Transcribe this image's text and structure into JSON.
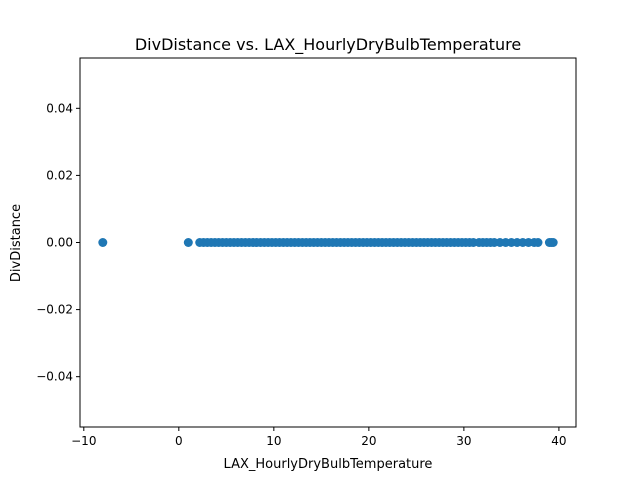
{
  "chart_data": {
    "type": "scatter",
    "title": "DivDistance vs. LAX_HourlyDryBulbTemperature",
    "xlabel": "LAX_HourlyDryBulbTemperature",
    "ylabel": "DivDistance",
    "xlim": [
      -10.4,
      41.8
    ],
    "ylim": [
      -0.055,
      0.055
    ],
    "xticks": [
      {
        "value": -10,
        "label": "−10"
      },
      {
        "value": 0,
        "label": "0"
      },
      {
        "value": 10,
        "label": "10"
      },
      {
        "value": 20,
        "label": "20"
      },
      {
        "value": 30,
        "label": "30"
      },
      {
        "value": 40,
        "label": "40"
      }
    ],
    "yticks": [
      {
        "value": -0.04,
        "label": "−0.04"
      },
      {
        "value": -0.02,
        "label": "−0.02"
      },
      {
        "value": 0.0,
        "label": "0.00"
      },
      {
        "value": 0.02,
        "label": "0.02"
      },
      {
        "value": 0.04,
        "label": "0.04"
      }
    ],
    "grid": false,
    "legend": "none",
    "color": "#1f77b4",
    "series": [
      {
        "x": [
          -8.0,
          1.0,
          2.2,
          2.6,
          3.0,
          3.4,
          3.8,
          4.2,
          4.6,
          5.0,
          5.4,
          5.8,
          6.2,
          6.6,
          7.0,
          7.4,
          7.8,
          8.2,
          8.6,
          9.0,
          9.4,
          9.8,
          10.2,
          10.6,
          11.0,
          11.4,
          11.8,
          12.2,
          12.6,
          13.0,
          13.4,
          13.8,
          14.2,
          14.6,
          15.0,
          15.4,
          15.8,
          16.2,
          16.6,
          17.0,
          17.4,
          17.8,
          18.2,
          18.6,
          19.0,
          19.4,
          19.8,
          20.2,
          20.6,
          21.0,
          21.4,
          21.8,
          22.2,
          22.6,
          23.0,
          23.4,
          23.8,
          24.2,
          24.6,
          25.0,
          25.4,
          25.8,
          26.2,
          26.6,
          27.0,
          27.4,
          27.8,
          28.2,
          28.6,
          29.0,
          29.4,
          29.8,
          30.2,
          30.6,
          31.0,
          31.6,
          32.0,
          32.4,
          32.8,
          33.2,
          33.8,
          34.4,
          35.0,
          35.6,
          36.2,
          36.8,
          37.4,
          37.8,
          39.0,
          39.2,
          39.4
        ],
        "y": [
          0,
          0,
          0,
          0,
          0,
          0,
          0,
          0,
          0,
          0,
          0,
          0,
          0,
          0,
          0,
          0,
          0,
          0,
          0,
          0,
          0,
          0,
          0,
          0,
          0,
          0,
          0,
          0,
          0,
          0,
          0,
          0,
          0,
          0,
          0,
          0,
          0,
          0,
          0,
          0,
          0,
          0,
          0,
          0,
          0,
          0,
          0,
          0,
          0,
          0,
          0,
          0,
          0,
          0,
          0,
          0,
          0,
          0,
          0,
          0,
          0,
          0,
          0,
          0,
          0,
          0,
          0,
          0,
          0,
          0,
          0,
          0,
          0,
          0,
          0,
          0,
          0,
          0,
          0,
          0,
          0,
          0,
          0,
          0,
          0,
          0,
          0,
          0,
          0,
          0,
          0
        ]
      }
    ]
  }
}
